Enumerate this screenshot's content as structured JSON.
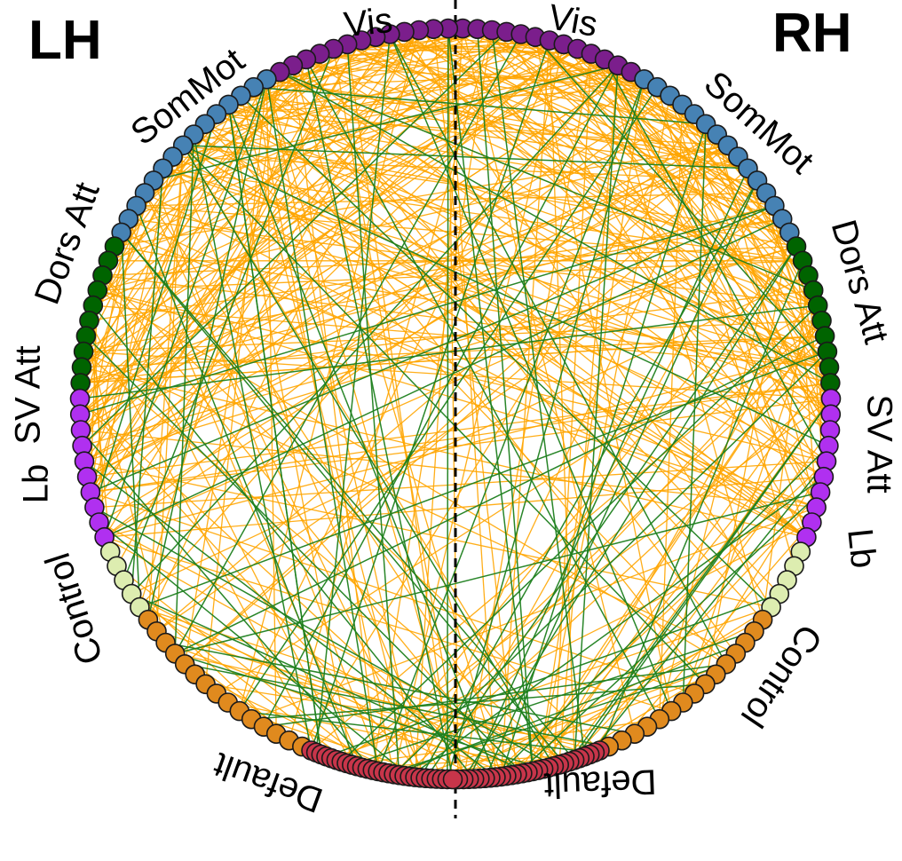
{
  "hemispheres": {
    "left": "LH",
    "right": "RH"
  },
  "networks": [
    {
      "id": "vis",
      "label": "Vis",
      "color": "#7B1E8C",
      "count": 13
    },
    {
      "id": "sommot",
      "label": "SomMot",
      "color": "#4682B4",
      "count": 15
    },
    {
      "id": "dorsatt",
      "label": "Dors Att",
      "color": "#006400",
      "count": 10
    },
    {
      "id": "svatt",
      "label": "SV Att",
      "color": "#B030F0",
      "count": 10
    },
    {
      "id": "lb",
      "label": "Lb",
      "color": "#DDEDB0",
      "count": 5
    },
    {
      "id": "control",
      "label": "Control",
      "color": "#E08A1E",
      "count": 15
    },
    {
      "id": "default",
      "label": "Default",
      "color": "#C8354A",
      "count": 28
    }
  ],
  "edge_types": [
    {
      "id": "orange",
      "color": "#FFA500",
      "count": 420
    },
    {
      "id": "green",
      "color": "#1E7F1E",
      "count": 85
    }
  ],
  "midline": "dashed"
}
